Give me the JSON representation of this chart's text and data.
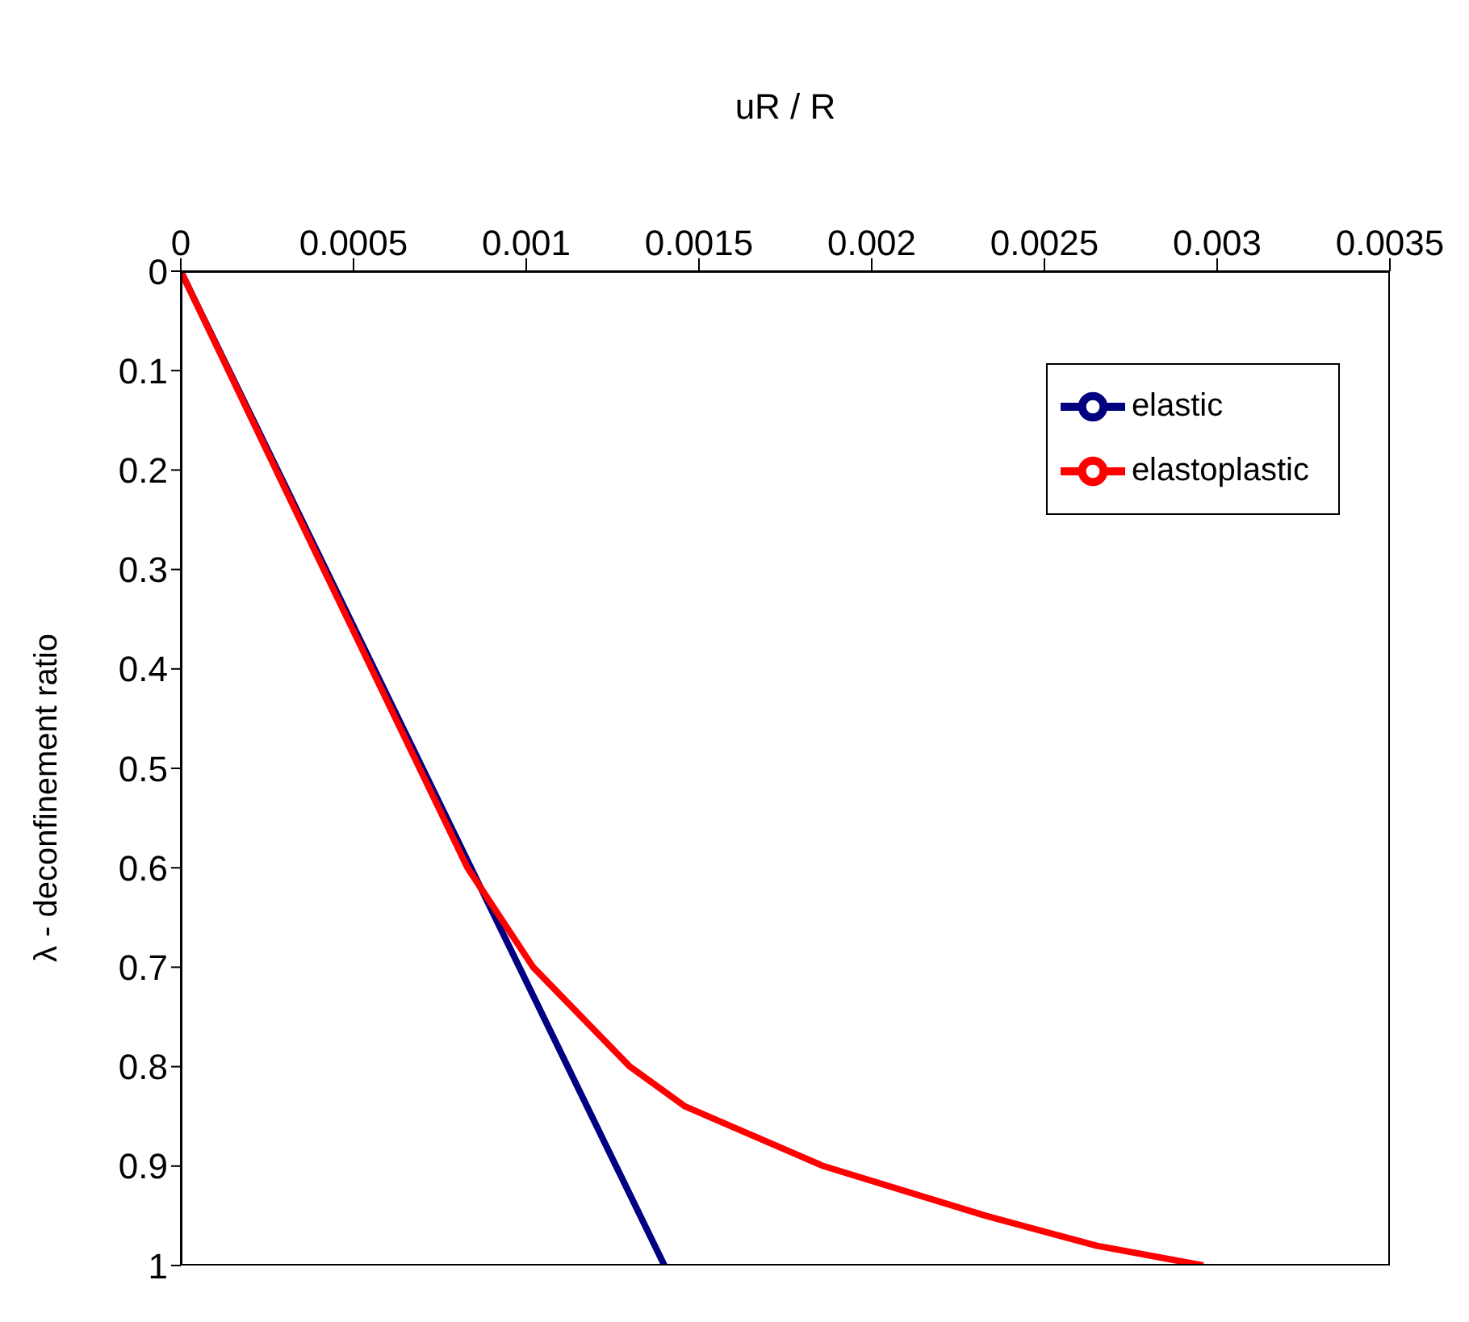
{
  "chart_data": {
    "type": "line",
    "xlabel": "uR / R",
    "ylabel": "λ - deconfinement  ratio",
    "xlim": [
      0,
      0.0035
    ],
    "xticks": [
      0,
      0.0005,
      0.001,
      0.0015,
      0.002,
      0.0025,
      0.003,
      0.0035
    ],
    "ylim": [
      1,
      0
    ],
    "yticks": [
      0,
      0.1,
      0.2,
      0.3,
      0.4,
      0.5,
      0.6,
      0.7,
      0.8,
      0.9,
      1
    ],
    "grid": false,
    "legend": "top right",
    "marker": "none",
    "line_style": "solid",
    "series": [
      {
        "name": "elastic",
        "color": "#000080",
        "x": [
          0,
          0.0007,
          0.0014
        ],
        "values": [
          0,
          0.5,
          1
        ]
      },
      {
        "name": "elastoplastic",
        "color": "#ff0000",
        "x": [
          0,
          0.0004,
          0.00083,
          0.00102,
          0.0013,
          0.00146,
          0.00186,
          0.00233,
          0.00265,
          0.00296
        ],
        "values": [
          0,
          0.29,
          0.6,
          0.7,
          0.8,
          0.84,
          0.9,
          0.95,
          0.98,
          1
        ]
      }
    ]
  }
}
